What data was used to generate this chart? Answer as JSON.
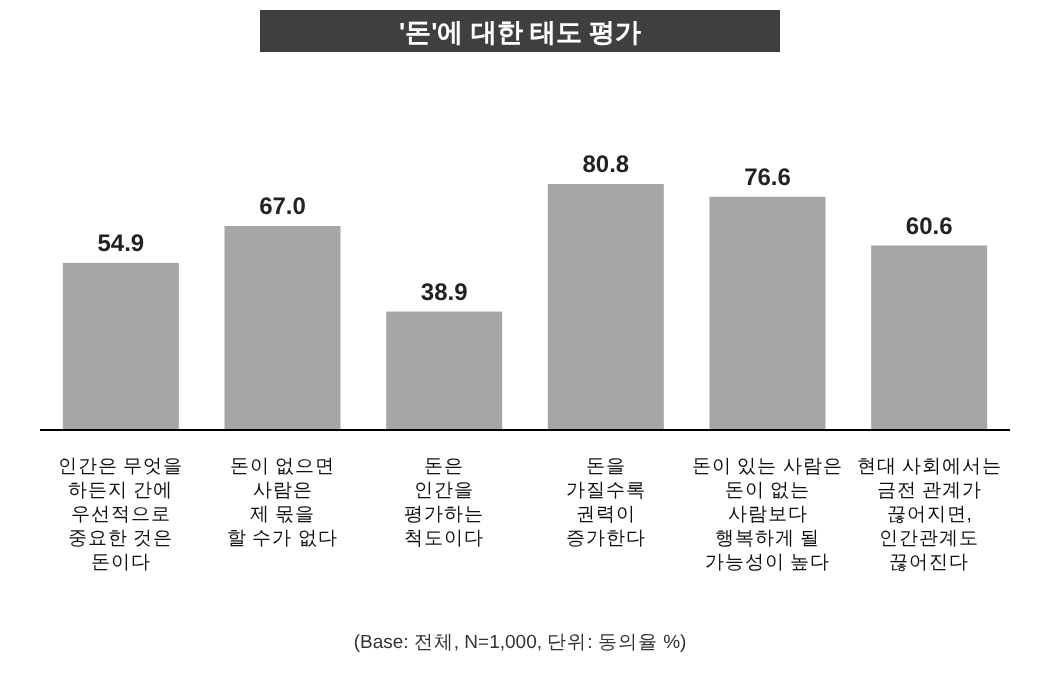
{
  "chart_data": {
    "type": "bar",
    "title": "'돈'에 대한 태도 평가",
    "categories": [
      "인간은 무엇을\n하든지 간에\n우선적으로\n중요한 것은\n돈이다",
      "돈이 없으면\n사람은\n제 몫을\n할 수가 없다",
      "돈은\n인간을\n평가하는\n척도이다",
      "돈을\n가질수록\n권력이\n증가한다",
      "돈이 있는 사람은\n돈이 없는\n사람보다\n행복하게 될\n가능성이 높다",
      "현대 사회에서는\n금전 관계가\n끊어지면,\n인간관계도\n끊어진다"
    ],
    "values": [
      54.9,
      67.0,
      38.9,
      80.8,
      76.6,
      60.6
    ],
    "value_labels": [
      "54.9",
      "67.0",
      "38.9",
      "80.8",
      "76.6",
      "60.6"
    ],
    "color": "#a6a6a6",
    "tick_labels": "x",
    "annotations": [
      "(Base: 전체, N=1,000, 단위: 동의율 %)"
    ]
  }
}
